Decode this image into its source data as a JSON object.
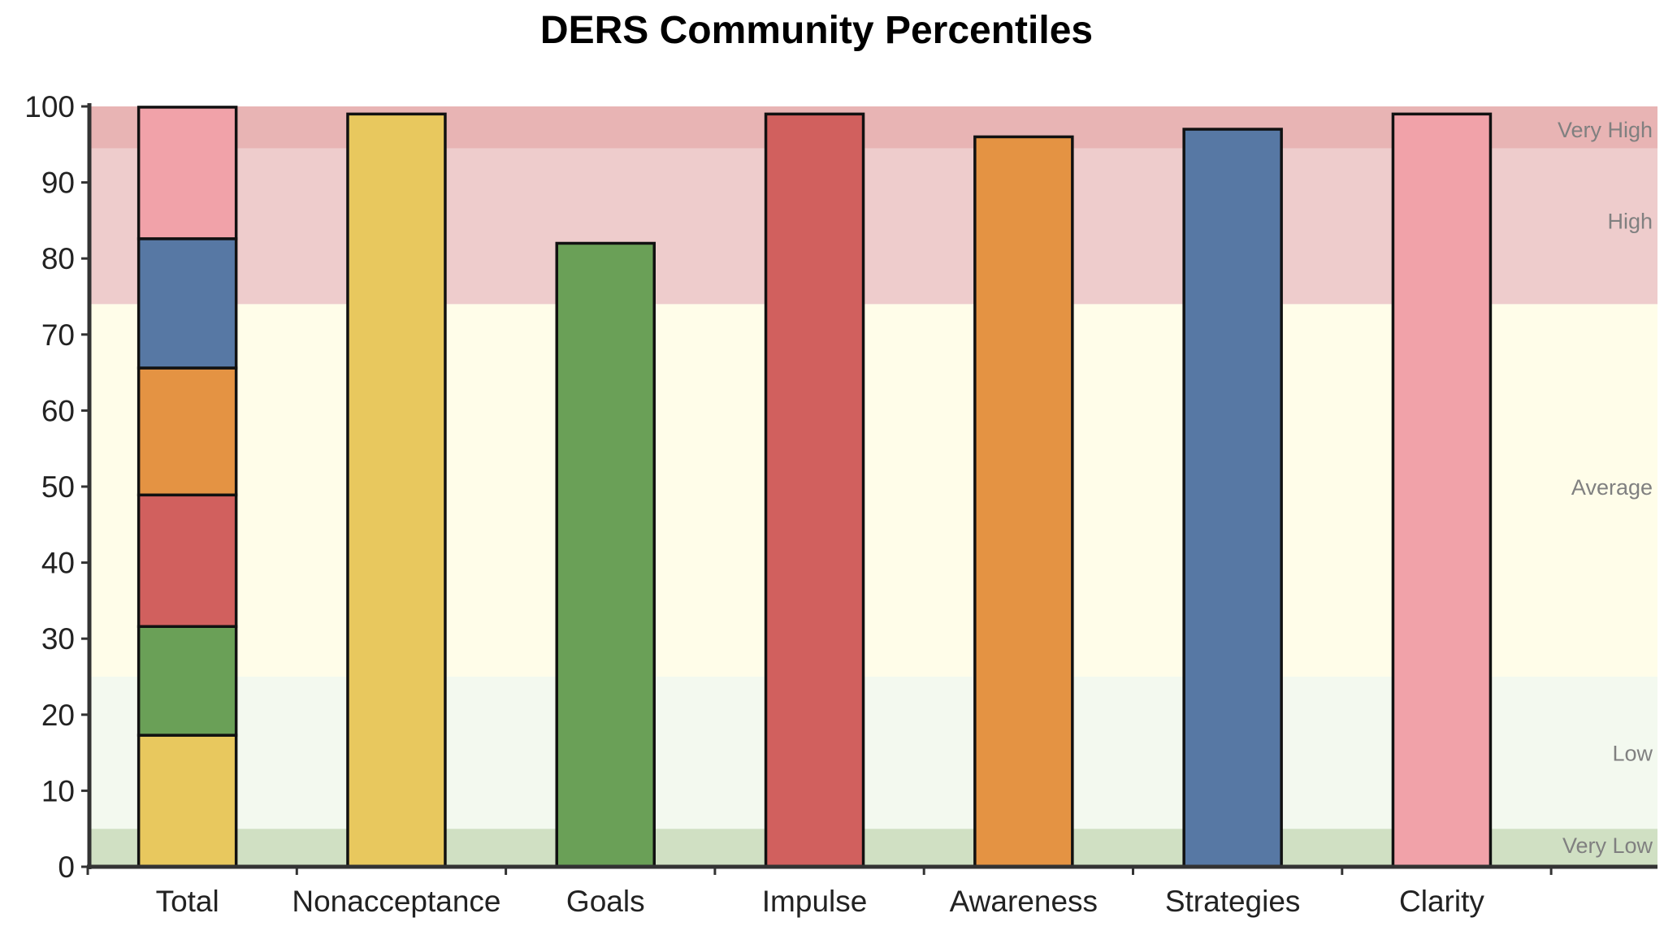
{
  "chart_data": {
    "type": "bar",
    "title": "DERS Community Percentiles",
    "xlabel": "",
    "ylabel": "",
    "ylim": [
      0,
      100
    ],
    "yticks": [
      0,
      10,
      20,
      30,
      40,
      50,
      60,
      70,
      80,
      90,
      100
    ],
    "grid": false,
    "categories": [
      "Total",
      "Nonacceptance",
      "Goals",
      "Impulse",
      "Awareness",
      "Strategies",
      "Clarity"
    ],
    "series": [
      {
        "color": "#e8c85e",
        "values": [
          17.3,
          99,
          null,
          null,
          null,
          null,
          null
        ]
      },
      {
        "color": "#6aa057",
        "values": [
          14.3,
          null,
          82,
          null,
          null,
          null,
          null
        ]
      },
      {
        "color": "#d1605e",
        "values": [
          17.3,
          null,
          null,
          99,
          null,
          null,
          null
        ]
      },
      {
        "color": "#e49343",
        "values": [
          16.7,
          null,
          null,
          null,
          96,
          null,
          null
        ]
      },
      {
        "color": "#5778a4",
        "values": [
          17.0,
          null,
          null,
          null,
          null,
          97,
          null
        ]
      },
      {
        "color": "#f1a2a9",
        "values": [
          17.3,
          null,
          null,
          null,
          null,
          null,
          99
        ]
      }
    ],
    "stacked_total": 100,
    "bands": [
      {
        "label": "Very Low",
        "from": 0,
        "to": 5,
        "color": "#d0e0c3"
      },
      {
        "label": "Low",
        "from": 5,
        "to": 25,
        "color": "#f3f9ef"
      },
      {
        "label": "Average",
        "from": 25,
        "to": 74,
        "color": "#fffde9"
      },
      {
        "label": "High",
        "from": 74,
        "to": 94.5,
        "color": "#eecccc"
      },
      {
        "label": "Very High",
        "from": 94.5,
        "to": 100,
        "color": "#e8b4b4"
      }
    ],
    "band_label_values": [
      2.9,
      15,
      50,
      85,
      97
    ]
  }
}
